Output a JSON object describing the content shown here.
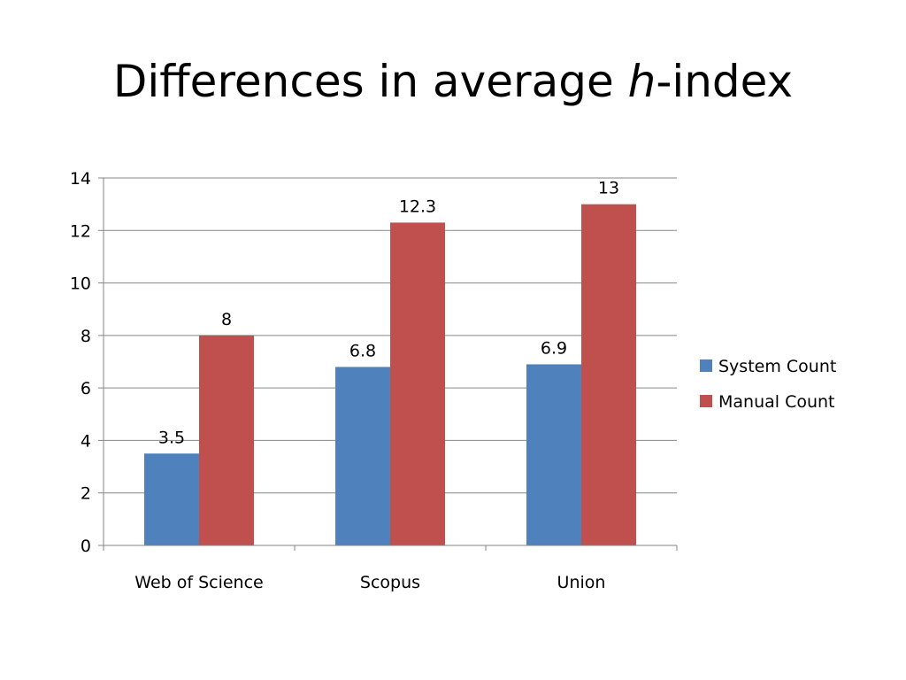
{
  "slide": {
    "title_prefix": "Differences in average ",
    "title_italic": "h",
    "title_suffix": "-index"
  },
  "chart_data": {
    "type": "bar",
    "categories": [
      "Web of Science",
      "Scopus",
      "Union"
    ],
    "series": [
      {
        "name": "System Count",
        "values": [
          3.5,
          6.8,
          6.9
        ],
        "color": "#4F81BD"
      },
      {
        "name": "Manual Count",
        "values": [
          8,
          12.3,
          13
        ],
        "color": "#C0504D"
      }
    ],
    "data_labels": [
      [
        "3.5",
        "6.8",
        "6.9"
      ],
      [
        "8",
        "12.3",
        "13"
      ]
    ],
    "ylim": [
      0,
      14
    ],
    "yticks": [
      0,
      2,
      4,
      6,
      8,
      10,
      12,
      14
    ],
    "grid": true,
    "legend": "right",
    "gridline_color": "#868686"
  }
}
